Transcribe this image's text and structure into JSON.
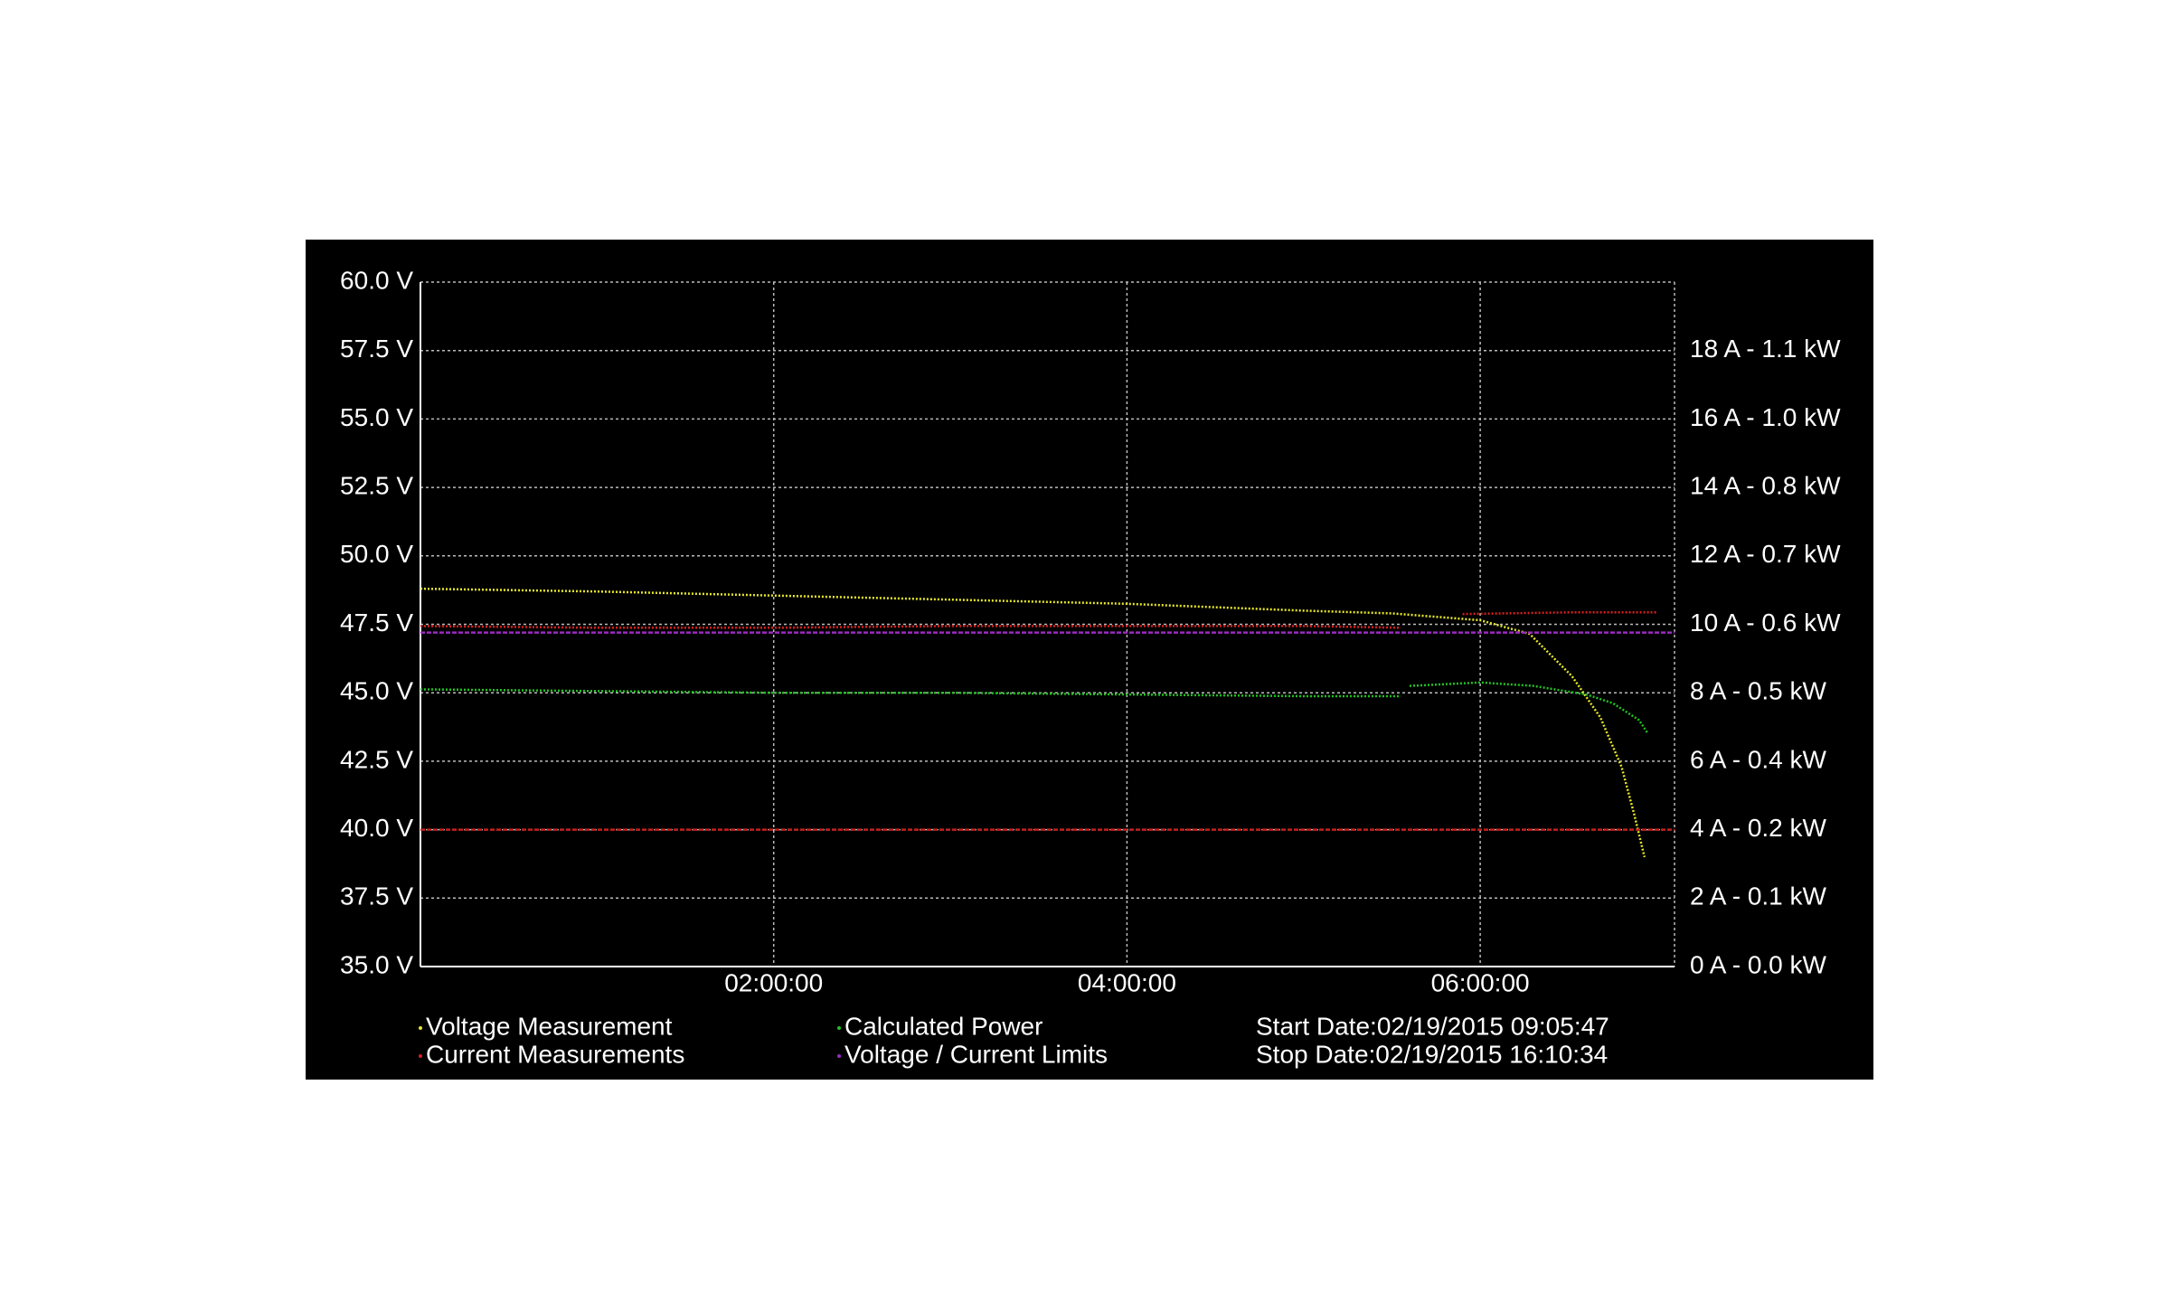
{
  "chart_data": {
    "type": "line",
    "xlim": [
      0,
      7.1
    ],
    "xticks": [
      {
        "value": 2,
        "label": "02:00:00"
      },
      {
        "value": 4,
        "label": "04:00:00"
      },
      {
        "value": 6,
        "label": "06:00:00"
      }
    ],
    "ylim": [
      35,
      60
    ],
    "yticks": [
      {
        "value": 35,
        "label": "35.0 V"
      },
      {
        "value": 37.5,
        "label": "37.5 V"
      },
      {
        "value": 40,
        "label": "40.0 V"
      },
      {
        "value": 42.5,
        "label": "42.5 V"
      },
      {
        "value": 45,
        "label": "45.0 V"
      },
      {
        "value": 47.5,
        "label": "47.5 V"
      },
      {
        "value": 50,
        "label": "50.0 V"
      },
      {
        "value": 52.5,
        "label": "52.5 V"
      },
      {
        "value": 55,
        "label": "55.0 V"
      },
      {
        "value": 57.5,
        "label": "57.5 V"
      },
      {
        "value": 60,
        "label": "60.0 V"
      }
    ],
    "y2lim": [
      0,
      20
    ],
    "y2ticks": [
      {
        "value": 0,
        "label": "0 A - 0.0 kW"
      },
      {
        "value": 2,
        "label": "2 A - 0.1 kW"
      },
      {
        "value": 4,
        "label": "4 A - 0.2 kW"
      },
      {
        "value": 6,
        "label": "6 A - 0.4 kW"
      },
      {
        "value": 8,
        "label": "8 A - 0.5 kW"
      },
      {
        "value": 10,
        "label": "10 A - 0.6 kW"
      },
      {
        "value": 12,
        "label": "12 A - 0.7 kW"
      },
      {
        "value": 14,
        "label": "14 A - 0.8 kW"
      },
      {
        "value": 16,
        "label": "16 A - 1.0 kW"
      },
      {
        "value": 18,
        "label": "18 A - 1.1 kW"
      }
    ],
    "grid": true,
    "series": [
      {
        "name": "Voltage Measurement",
        "color": "#e6e62a",
        "axis": "y",
        "x": [
          0,
          1,
          2,
          3,
          4,
          5,
          5.5,
          6,
          6.28,
          6.52,
          6.68,
          6.8,
          6.87,
          6.93
        ],
        "values": [
          48.8,
          48.7,
          48.55,
          48.4,
          48.25,
          48.0,
          47.9,
          47.65,
          47.15,
          45.6,
          44.1,
          42.3,
          40.6,
          39.0
        ]
      },
      {
        "name": "Current Measurements",
        "color": "#d42020",
        "axis": "y2",
        "x": [
          0,
          1,
          2,
          3,
          4,
          5,
          5.55,
          5.7,
          5.9,
          6.5,
          7.0
        ],
        "values": [
          9.95,
          9.9,
          9.9,
          9.95,
          9.95,
          9.95,
          9.9,
          null,
          10.3,
          10.35,
          10.35
        ]
      },
      {
        "name": "Calculated Power",
        "color": "#22c022",
        "axis": "y2",
        "x": [
          0,
          1,
          2,
          3,
          4,
          5,
          5.55,
          5.57,
          5.6,
          6,
          6.3,
          6.6,
          6.75,
          6.9,
          6.95
        ],
        "values": [
          8.1,
          8.05,
          8.0,
          8.0,
          7.95,
          7.9,
          7.9,
          null,
          8.2,
          8.3,
          8.2,
          7.95,
          7.7,
          7.2,
          6.8
        ]
      },
      {
        "name": "Voltage / Current Limits",
        "color": "#9a2ac0",
        "axis": "y",
        "hlines": true,
        "values": [
          47.2,
          40
        ],
        "colors": [
          "#9a2ac0",
          "#c42020"
        ]
      }
    ],
    "annotations": [
      "Start Date:02/19/2015 09:05:47",
      "Stop Date:02/19/2015 16:10:34"
    ]
  }
}
